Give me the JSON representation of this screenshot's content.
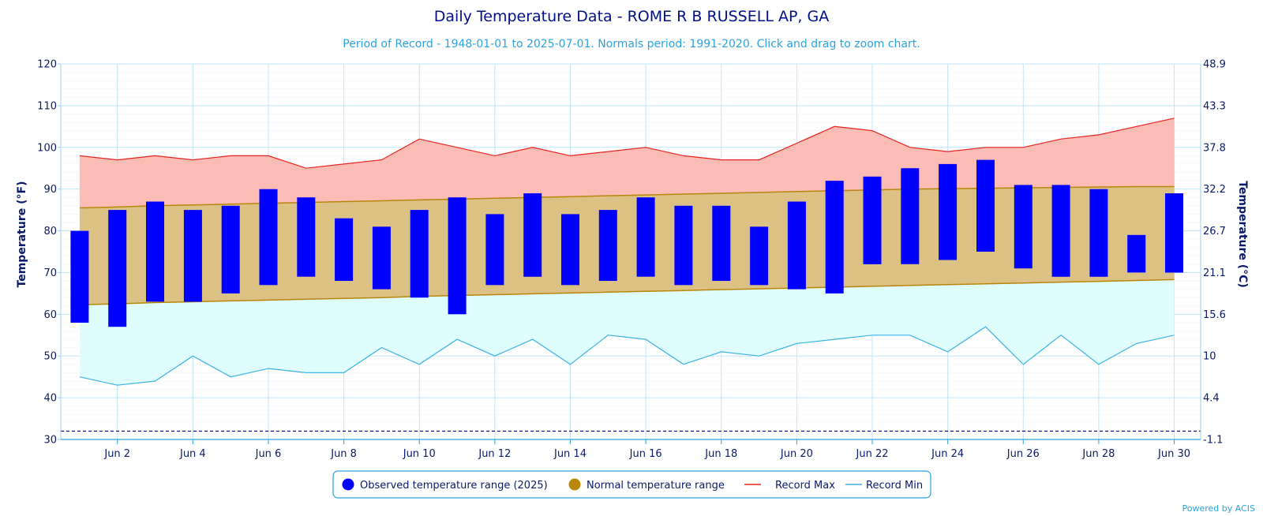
{
  "chart_data": {
    "type": "bar",
    "title": "Daily Temperature Data - ROME R B RUSSELL AP, GA",
    "subtitle": "Period of Record - 1948-01-01 to 2025-07-01. Normals period: 1991-2020. Click and drag to zoom chart.",
    "ylabel_left": "Temperature (°F)",
    "ylabel_right": "Temperature (°C)",
    "ylim": [
      30,
      120
    ],
    "yticks_left": [
      "30",
      "40",
      "50",
      "60",
      "70",
      "80",
      "90",
      "100",
      "110",
      "120"
    ],
    "yticks_right": [
      "-1.1",
      "4.4",
      "10",
      "15.6",
      "21.1",
      "26.7",
      "32.2",
      "37.8",
      "43.3",
      "48.9"
    ],
    "xticks": [
      "Jun 2",
      "Jun 4",
      "Jun 6",
      "Jun 8",
      "Jun 10",
      "Jun 12",
      "Jun 14",
      "Jun 16",
      "Jun 18",
      "Jun 20",
      "Jun 22",
      "Jun 24",
      "Jun 26",
      "Jun 28",
      "Jun 30"
    ],
    "freezing_line": 32,
    "grid": true,
    "legend_position": "bottom-center",
    "days": [
      1,
      2,
      3,
      4,
      5,
      6,
      7,
      8,
      9,
      10,
      11,
      12,
      13,
      14,
      15,
      16,
      17,
      18,
      19,
      20,
      21,
      22,
      23,
      24,
      25,
      26,
      27,
      28,
      29,
      30
    ],
    "observed_low": [
      58,
      57,
      63,
      63,
      65,
      67,
      69,
      68,
      66,
      64,
      60,
      67,
      69,
      67,
      68,
      69,
      67,
      68,
      67,
      66,
      65,
      72,
      72,
      73,
      75,
      71,
      69,
      69,
      70,
      70
    ],
    "observed_high": [
      80,
      85,
      87,
      85,
      86,
      90,
      88,
      83,
      81,
      85,
      88,
      84,
      89,
      84,
      85,
      88,
      86,
      86,
      81,
      87,
      92,
      93,
      95,
      96,
      97,
      91,
      91,
      90,
      79,
      89
    ],
    "normal_low": [
      62.3,
      62.5,
      62.8,
      63.0,
      63.2,
      63.4,
      63.6,
      63.8,
      64.0,
      64.3,
      64.5,
      64.7,
      64.9,
      65.1,
      65.3,
      65.5,
      65.7,
      65.9,
      66.1,
      66.3,
      66.5,
      66.7,
      66.9,
      67.1,
      67.3,
      67.5,
      67.7,
      67.9,
      68.1,
      68.3
    ],
    "normal_high": [
      85.5,
      85.7,
      86.0,
      86.2,
      86.4,
      86.6,
      86.8,
      87.0,
      87.2,
      87.4,
      87.6,
      87.8,
      88.0,
      88.2,
      88.4,
      88.6,
      88.8,
      89.0,
      89.2,
      89.4,
      89.6,
      89.8,
      90.0,
      90.1,
      90.2,
      90.3,
      90.4,
      90.5,
      90.6,
      90.6
    ],
    "record_max": [
      98,
      97,
      98,
      97,
      98,
      98,
      95,
      96,
      97,
      102,
      100,
      98,
      100,
      98,
      99,
      100,
      98,
      97,
      97,
      101,
      105,
      104,
      100,
      99,
      100,
      100,
      102,
      103,
      105,
      107
    ],
    "record_min": [
      45,
      43,
      44,
      50,
      45,
      47,
      46,
      46,
      52,
      48,
      54,
      50,
      54,
      48,
      55,
      54,
      48,
      51,
      50,
      53,
      54,
      55,
      55,
      51,
      57,
      48,
      55,
      48,
      53,
      55
    ],
    "legend": [
      {
        "label": "Observed temperature range (2025)",
        "color": "#0000ff"
      },
      {
        "label": "Normal temperature range",
        "color": "#b8860b"
      },
      {
        "label": "Record Max",
        "color": "#e8231f"
      },
      {
        "label": "Record Min",
        "color": "#3bb3e6"
      }
    ],
    "colors": {
      "observed": "#0000ff",
      "normal_fill": "#dcc184",
      "normal_line": "#b8860b",
      "record_max_line": "#e8231f",
      "record_max_fill": "#fbbcb6",
      "record_min_line": "#3bb3e6",
      "record_min_fill": "#e0fdfd",
      "freezing": "#00008b"
    },
    "credit": "Powered by ACIS"
  }
}
